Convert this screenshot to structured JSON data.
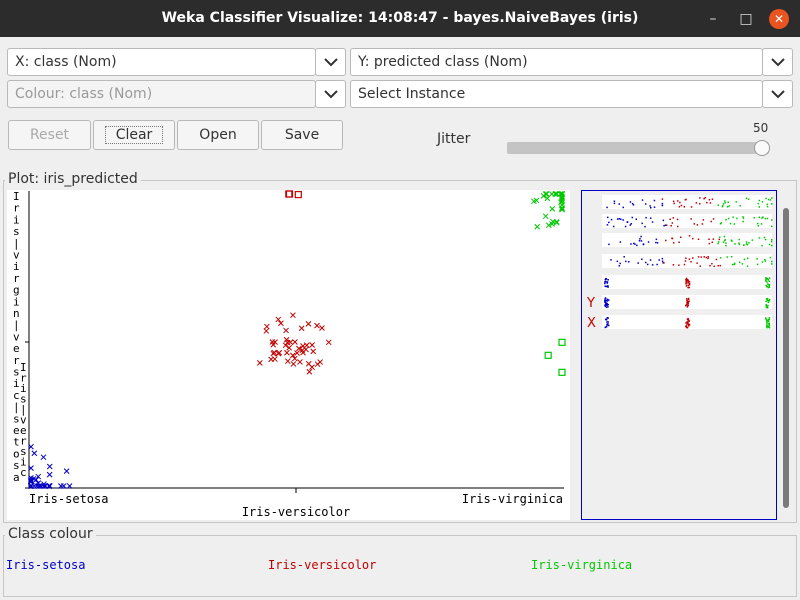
{
  "window": {
    "title": "Weka Classifier Visualize: 14:08:47 - bayes.NaiveBayes (iris)",
    "minimize_glyph": "–",
    "maximize_glyph": "□",
    "close_glyph": "✕"
  },
  "controls": {
    "x_axis": "X: class (Nom)",
    "y_axis": "Y: predicted class (Nom)",
    "colour": "Colour: class (Nom)",
    "instance": "Select Instance",
    "reset": "Reset",
    "clear": "Clear",
    "open": "Open",
    "save": "Save",
    "jitter_label": "Jitter",
    "jitter_value": "50",
    "jitter_max": 50
  },
  "plot": {
    "title": "Plot: iris_predicted",
    "y_label_letters": [
      "I",
      "r",
      "i",
      "s",
      "|",
      "v",
      "i",
      "r",
      "g",
      "i",
      "n",
      "|",
      "v",
      "e",
      "r",
      "s",
      "i",
      "c",
      "|",
      "s",
      "e",
      "t",
      "o",
      "s",
      "a"
    ],
    "y_label_letters2": [
      "I",
      "r",
      "i",
      "s",
      "|",
      "v",
      "e",
      "r",
      "s",
      "i",
      "c"
    ],
    "attribute_y_mark": "Y",
    "attribute_x_mark": "X"
  },
  "class_colour": {
    "title": "Class colour",
    "classes": [
      {
        "name": "Iris-setosa",
        "color": "#0000c8"
      },
      {
        "name": "Iris-versicolor",
        "color": "#c00000"
      },
      {
        "name": "Iris-virginica",
        "color": "#00c800"
      }
    ]
  },
  "chart_data": {
    "type": "scatter",
    "x_categories": [
      "Iris-setosa",
      "Iris-versicolor",
      "Iris-virginica"
    ],
    "y_categories": [
      "Iris-setosa",
      "Iris-versicolor",
      "Iris-virginica"
    ],
    "jitter": 50,
    "clusters": [
      {
        "actual": "Iris-setosa",
        "predicted": "Iris-setosa",
        "count": 50,
        "marker": "x",
        "color": "#0000c8"
      },
      {
        "actual": "Iris-versicolor",
        "predicted": "Iris-versicolor",
        "count": 47,
        "marker": "x",
        "color": "#c00000"
      },
      {
        "actual": "Iris-versicolor",
        "predicted": "Iris-virginica",
        "count": 3,
        "marker": "square",
        "color": "#c00000"
      },
      {
        "actual": "Iris-virginica",
        "predicted": "Iris-virginica",
        "count": 47,
        "marker": "x",
        "color": "#00c800"
      },
      {
        "actual": "Iris-virginica",
        "predicted": "Iris-versicolor",
        "count": 3,
        "marker": "square",
        "color": "#00c800"
      }
    ]
  }
}
